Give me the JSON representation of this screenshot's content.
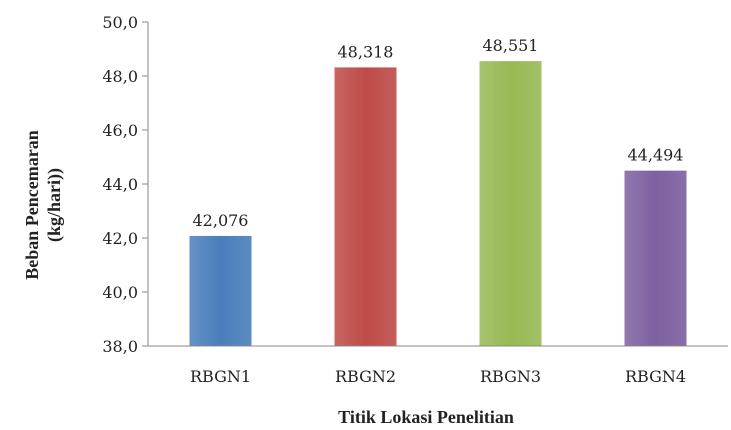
{
  "chart_data": {
    "type": "bar",
    "categories": [
      "RBGN1",
      "RBGN2",
      "RBGN3",
      "RBGN4"
    ],
    "values": [
      42.076,
      48.318,
      48.551,
      44.494
    ],
    "value_labels": [
      "42,076",
      "48,318",
      "48,551",
      "44,494"
    ],
    "bar_colors": [
      "#4a7ebb",
      "#be4b48",
      "#98b954",
      "#7d60a0"
    ],
    "xlabel": "Titik Lokasi Penelitian",
    "ylabel_lines": [
      "Beban Pencemaran",
      "(kg/hari))"
    ],
    "ylim": [
      38,
      50
    ],
    "yticks": [
      38,
      40,
      42,
      44,
      46,
      48,
      50
    ],
    "ytick_labels": [
      "38,0",
      "40,0",
      "42,0",
      "44,0",
      "46,0",
      "48,0",
      "50,0"
    ],
    "grid": false,
    "legend": "none"
  }
}
